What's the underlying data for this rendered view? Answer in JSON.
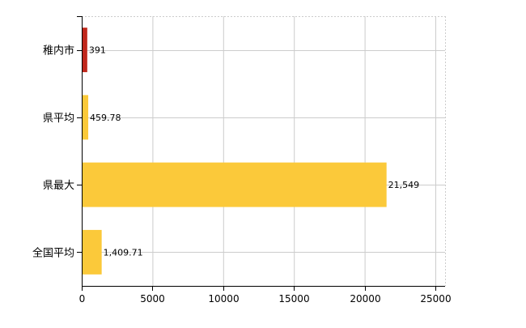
{
  "chart_data": {
    "type": "bar",
    "orientation": "horizontal",
    "categories": [
      "稚内市",
      "県平均",
      "県最大",
      "全国平均"
    ],
    "values": [
      391,
      459.78,
      21549,
      1409.71
    ],
    "value_labels": [
      "391",
      "459.78",
      "21,549",
      "1,409.71"
    ],
    "bar_colors": [
      "#c0281c",
      "#fbc93a",
      "#fbc93a",
      "#fbc93a"
    ],
    "xlim": [
      0,
      25000
    ],
    "x_ticks": [
      0,
      5000,
      10000,
      15000,
      20000,
      25000
    ],
    "x_tick_labels": [
      "0",
      "5000",
      "10000",
      "15000",
      "20000",
      "25000"
    ],
    "title": "",
    "xlabel": "",
    "ylabel": "",
    "grid": true,
    "grid_color": "#cccccc",
    "legend": "none"
  }
}
